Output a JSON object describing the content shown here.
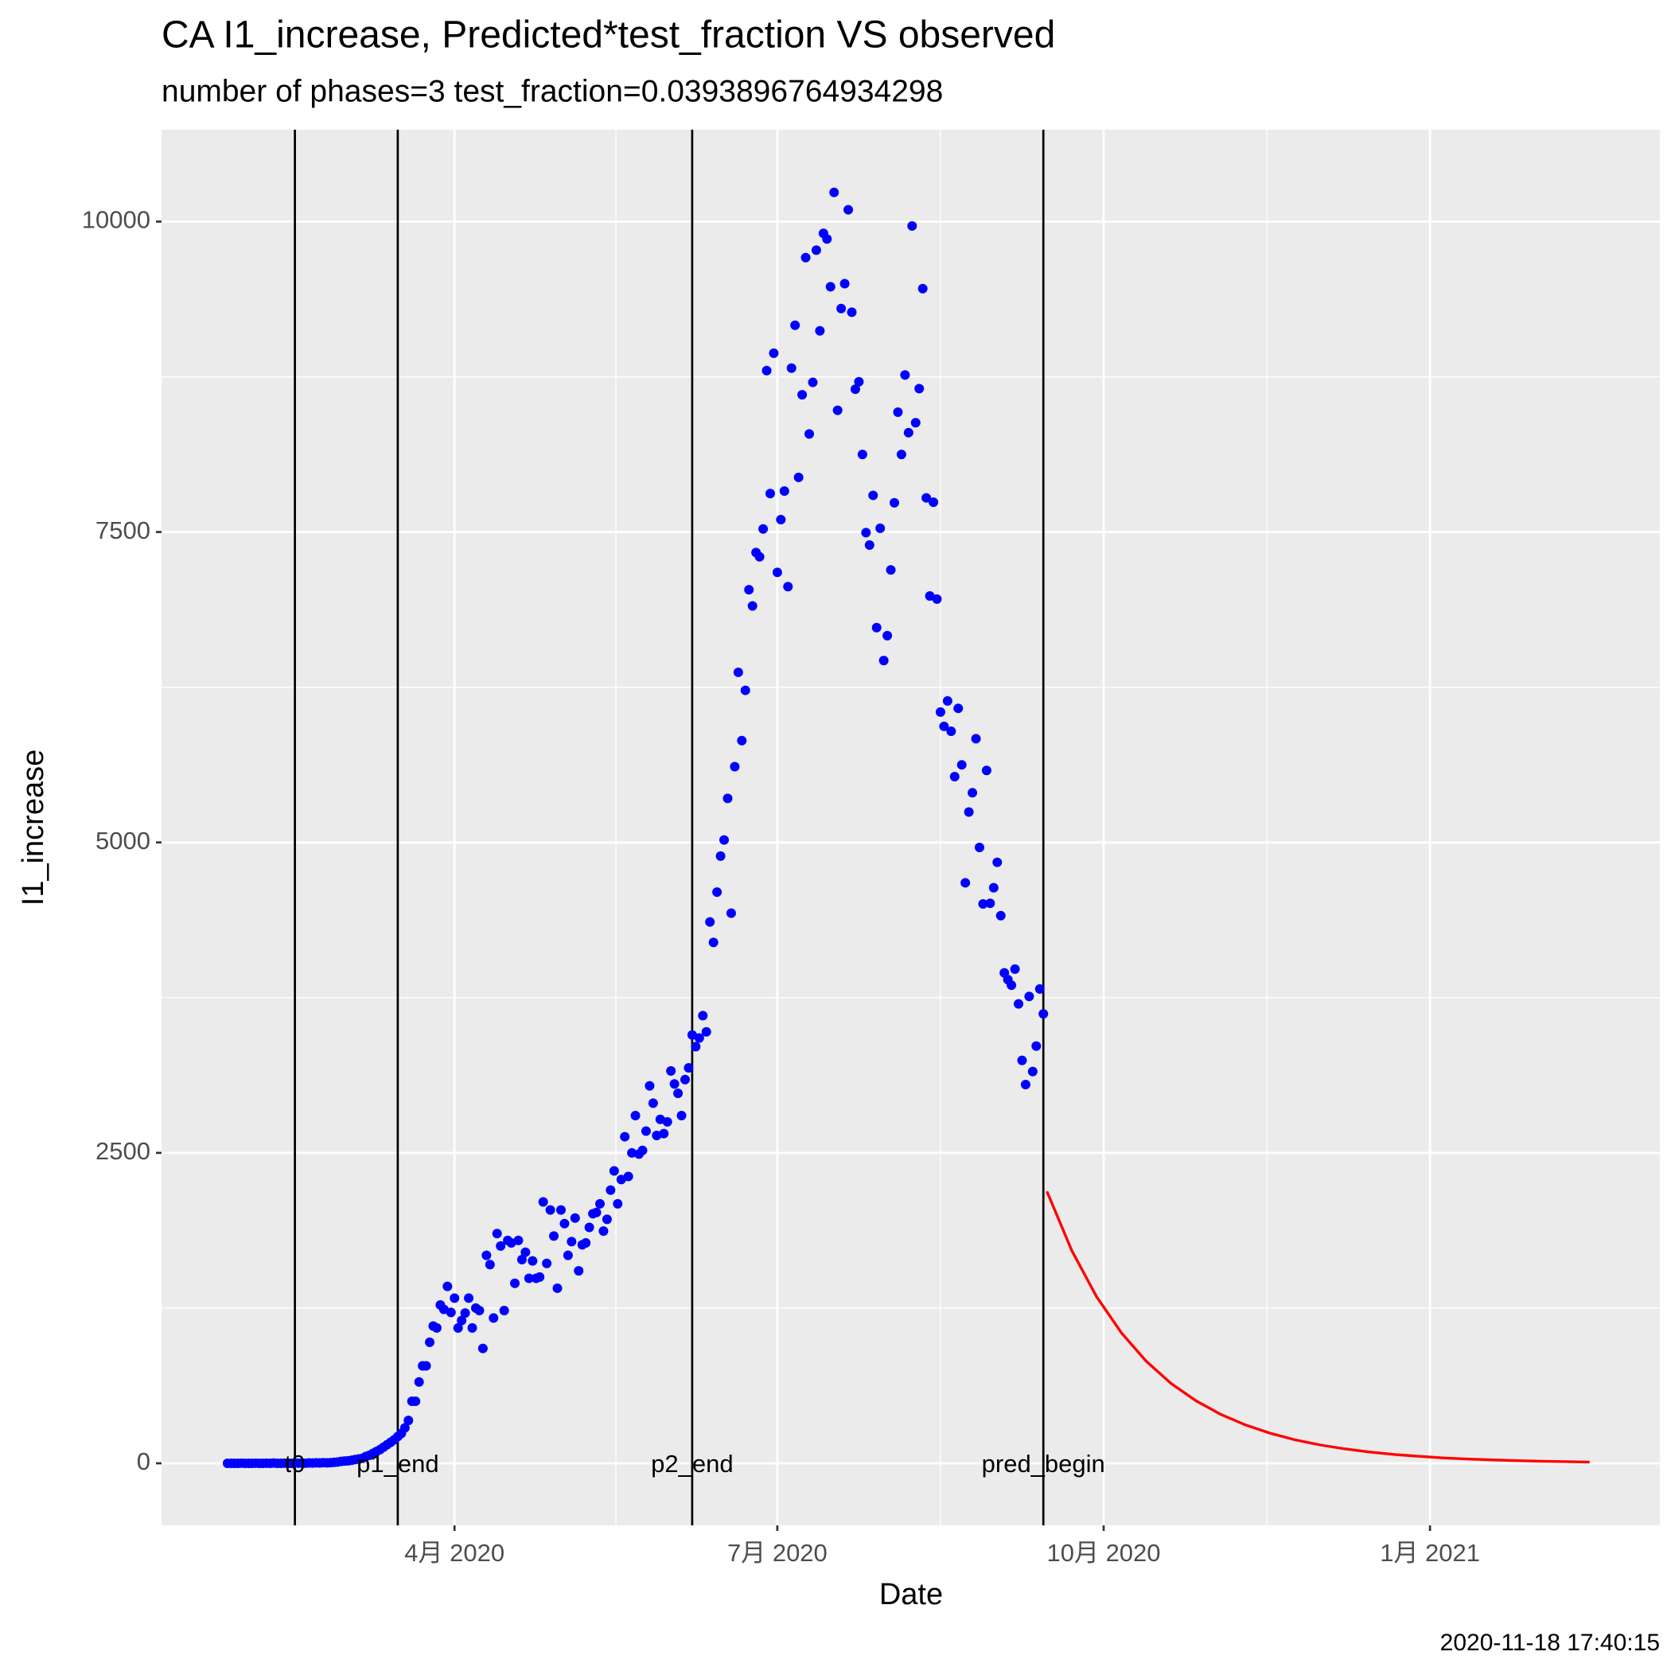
{
  "chart_data": {
    "type": "scatter",
    "title": "CA I1_increase, Predicted*test_fraction VS observed",
    "subtitle": "number of phases=3   test_fraction=0.0393896764934298",
    "x_label": "Date",
    "y_label": "I1_increase",
    "caption": "2020-11-18 17:40:15",
    "xlim": [
      8.4,
      430.8
    ],
    "ylim": [
      -500,
      10740
    ],
    "xticks": [
      {
        "value": 91,
        "label": "4月 2020"
      },
      {
        "value": 182,
        "label": "7月 2020"
      },
      {
        "value": 274,
        "label": "10月 2020"
      },
      {
        "value": 366,
        "label": "1月 2021"
      }
    ],
    "yticks": [
      0,
      2500,
      5000,
      7500,
      10000
    ],
    "grid": true,
    "vlines": [
      {
        "x": 46,
        "label": "t0"
      },
      {
        "x": 75,
        "label": "p1_end"
      },
      {
        "x": 158,
        "label": "p2_end"
      },
      {
        "x": 257,
        "label": "pred_begin"
      }
    ],
    "vline_color": "#000000",
    "series": [
      {
        "type": "scatter",
        "color": "#0000ff",
        "x": [
          27,
          28,
          29,
          30,
          31,
          32,
          33,
          34,
          35,
          36,
          37,
          38,
          39,
          40,
          41,
          42,
          43,
          44,
          45,
          46,
          47,
          48,
          49,
          50,
          51,
          52,
          53,
          54,
          55,
          56,
          57,
          58,
          59,
          60,
          61,
          62,
          63,
          64,
          65,
          66,
          67,
          68,
          69,
          70,
          71,
          72,
          73,
          74,
          75,
          76,
          77,
          78,
          79,
          80,
          81,
          82,
          83,
          84,
          85,
          86,
          87,
          88,
          89,
          90,
          91,
          92,
          93,
          94,
          95,
          96,
          97,
          98,
          99,
          100,
          101,
          102,
          103,
          104,
          105,
          106,
          107,
          108,
          109,
          110,
          111,
          112,
          113,
          114,
          115,
          116,
          117,
          118,
          119,
          120,
          121,
          122,
          123,
          124,
          125,
          126,
          127,
          128,
          129,
          130,
          131,
          132,
          133,
          134,
          135,
          136,
          137,
          138,
          139,
          140,
          141,
          142,
          143,
          144,
          145,
          146,
          147,
          148,
          149,
          150,
          151,
          152,
          153,
          154,
          155,
          156,
          157,
          158,
          159,
          160,
          161,
          162,
          163,
          164,
          165,
          166,
          167,
          168,
          169,
          170,
          171,
          172,
          173,
          174,
          175,
          176,
          177,
          178,
          179,
          180,
          181,
          182,
          183,
          184,
          185,
          186,
          187,
          188,
          189,
          190,
          191,
          192,
          193,
          194,
          195,
          196,
          197,
          198,
          199,
          200,
          201,
          202,
          203,
          204,
          205,
          206,
          207,
          208,
          209,
          210,
          211,
          212,
          213,
          214,
          215,
          216,
          217,
          218,
          219,
          220,
          221,
          222,
          223,
          224,
          225,
          226,
          227,
          228,
          229,
          230,
          231,
          232,
          233,
          234,
          235,
          236,
          237,
          238,
          239,
          240,
          241,
          242,
          243,
          244,
          245,
          246,
          247,
          248,
          249,
          250,
          251,
          252,
          253,
          254,
          255,
          256,
          257
        ],
        "values": [
          0,
          0,
          0,
          0,
          1,
          0,
          0,
          0,
          1,
          0,
          0,
          1,
          0,
          2,
          0,
          0,
          1,
          0,
          0,
          3,
          1,
          2,
          1,
          3,
          2,
          4,
          3,
          5,
          4,
          5,
          8,
          10,
          15,
          18,
          20,
          25,
          30,
          35,
          40,
          55,
          65,
          80,
          95,
          110,
          130,
          150,
          170,
          190,
          215,
          240,
          285,
          345,
          500,
          500,
          655,
          785,
          785,
          975,
          1105,
          1090,
          1275,
          1240,
          1425,
          1215,
          1330,
          1090,
          1150,
          1210,
          1330,
          1090,
          1250,
          1230,
          925,
          1675,
          1600,
          1170,
          1850,
          1750,
          1230,
          1795,
          1775,
          1450,
          1795,
          1640,
          1700,
          1490,
          1630,
          1490,
          1500,
          2105,
          1610,
          2040,
          1830,
          1410,
          2040,
          1930,
          1675,
          1785,
          1975,
          1550,
          1760,
          1775,
          1900,
          2010,
          2020,
          2090,
          1870,
          1965,
          2200,
          2355,
          2090,
          2285,
          2630,
          2310,
          2500,
          2800,
          2490,
          2520,
          2675,
          3040,
          2900,
          2640,
          2770,
          2655,
          2750,
          3160,
          3055,
          2980,
          2800,
          3090,
          3185,
          3450,
          3355,
          3425,
          3605,
          3475,
          4360,
          4195,
          4600,
          4890,
          5020,
          5355,
          4430,
          5610,
          6370,
          5820,
          6225,
          7035,
          6905,
          7335,
          7300,
          7525,
          8800,
          7810,
          8940,
          7175,
          7600,
          7830,
          7060,
          8820,
          9165,
          7940,
          8605,
          9710,
          8290,
          8705,
          9770,
          9120,
          9905,
          9860,
          9475,
          10235,
          8480,
          9300,
          9500,
          10095,
          9270,
          8650,
          8710,
          8125,
          7495,
          7395,
          7795,
          6730,
          7530,
          6465,
          6665,
          7195,
          7735,
          8465,
          8125,
          8765,
          8300,
          9965,
          8380,
          8655,
          9460,
          7775,
          6985,
          7740,
          6960,
          6050,
          5935,
          6140,
          5895,
          5530,
          6080,
          5625,
          4675,
          5245,
          5400,
          5835,
          4960,
          4505,
          5580,
          4510,
          4635,
          4840,
          4410,
          3950,
          3895,
          3850,
          3980,
          3700,
          3245,
          3050,
          3760,
          3155,
          3360,
          3820,
          3620
        ]
      },
      {
        "type": "line",
        "color": "#ff0000",
        "x": [
          258,
          265,
          272,
          279,
          286,
          293,
          300,
          307,
          314,
          321,
          328,
          335,
          342,
          349,
          356,
          363,
          370,
          377,
          384,
          391,
          398,
          405,
          411
        ],
        "values": [
          2190,
          1714,
          1342,
          1051,
          822,
          643,
          504,
          394,
          309,
          242,
          189,
          148,
          116,
          91,
          71,
          56,
          43,
          34,
          27,
          21,
          16,
          13,
          10
        ]
      }
    ]
  }
}
